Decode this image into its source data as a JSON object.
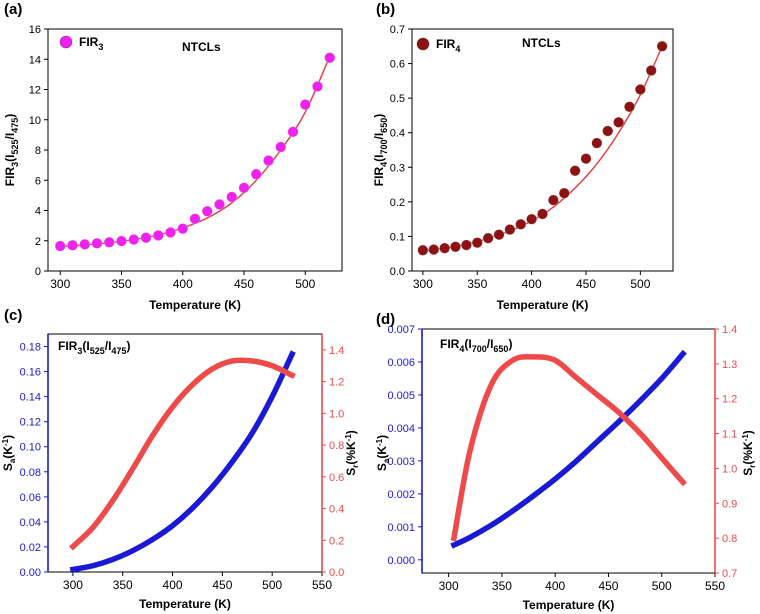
{
  "chart_data": [
    {
      "panel": "(a)",
      "type": "scatter",
      "annotation": "NTCLs",
      "xlabel": "Temperature (K)",
      "ylabel": {
        "base": "FIR",
        "sub1": "3",
        "mid": "(I",
        "sub2": "525",
        "slash": "/I",
        "sub3": "475",
        "end": ")"
      },
      "legend": {
        "base": "FIR",
        "sub": "3"
      },
      "legend_position": "top-left",
      "xlim": [
        290,
        530
      ],
      "ylim": [
        0,
        16
      ],
      "xticks": [
        300,
        350,
        400,
        450,
        500
      ],
      "yticks": [
        0,
        2,
        4,
        6,
        8,
        10,
        12,
        14,
        16
      ],
      "marker_color": "#ee22ee",
      "fit_color": "#e8383b",
      "x": [
        300,
        310,
        320,
        330,
        340,
        350,
        360,
        370,
        380,
        390,
        400,
        410,
        420,
        430,
        440,
        450,
        460,
        470,
        480,
        490,
        500,
        510,
        520
      ],
      "y": [
        1.65,
        1.7,
        1.76,
        1.83,
        1.9,
        1.98,
        2.08,
        2.2,
        2.35,
        2.55,
        2.8,
        3.45,
        3.95,
        4.4,
        4.9,
        5.5,
        6.4,
        7.3,
        8.2,
        9.2,
        11.0,
        12.2,
        14.1
      ],
      "fit": [
        [
          300,
          1.62
        ],
        [
          320,
          1.72
        ],
        [
          340,
          1.87
        ],
        [
          360,
          2.08
        ],
        [
          380,
          2.38
        ],
        [
          400,
          2.85
        ],
        [
          420,
          3.5
        ],
        [
          440,
          4.5
        ],
        [
          460,
          6.0
        ],
        [
          480,
          8.0
        ],
        [
          500,
          10.5
        ],
        [
          520,
          14.2
        ]
      ]
    },
    {
      "panel": "(b)",
      "type": "scatter",
      "annotation": "NTCLs",
      "xlabel": "Temperature (K)",
      "ylabel": {
        "base": "FIR",
        "sub1": "4",
        "mid": "(I",
        "sub2": "700",
        "slash": "/I",
        "sub3": "650",
        "end": ")"
      },
      "legend": {
        "base": "FIR",
        "sub": "4"
      },
      "legend_position": "top-left",
      "xlim": [
        290,
        530
      ],
      "ylim": [
        0,
        0.7
      ],
      "xticks": [
        300,
        350,
        400,
        450,
        500
      ],
      "yticks": [
        0.0,
        0.1,
        0.2,
        0.3,
        0.4,
        0.5,
        0.6,
        0.7
      ],
      "marker_color": "#8b1313",
      "fit_color": "#e8383b",
      "x": [
        300,
        310,
        320,
        330,
        340,
        350,
        360,
        370,
        380,
        390,
        400,
        410,
        420,
        430,
        440,
        450,
        460,
        470,
        480,
        490,
        500,
        510,
        520
      ],
      "y": [
        0.06,
        0.062,
        0.066,
        0.07,
        0.075,
        0.082,
        0.095,
        0.105,
        0.12,
        0.135,
        0.15,
        0.165,
        0.205,
        0.225,
        0.29,
        0.325,
        0.37,
        0.405,
        0.43,
        0.475,
        0.525,
        0.58,
        0.65
      ],
      "fit": [
        [
          300,
          0.058
        ],
        [
          320,
          0.066
        ],
        [
          340,
          0.078
        ],
        [
          360,
          0.094
        ],
        [
          380,
          0.116
        ],
        [
          400,
          0.145
        ],
        [
          420,
          0.185
        ],
        [
          440,
          0.24
        ],
        [
          460,
          0.31
        ],
        [
          480,
          0.4
        ],
        [
          500,
          0.51
        ],
        [
          520,
          0.65
        ]
      ]
    },
    {
      "panel": "(c)",
      "type": "line",
      "xlabel": "Temperature (K)",
      "inner_title": {
        "base": "FIR",
        "sub1": "3",
        "mid": "(I",
        "sub2": "525",
        "slash": "/I",
        "sub3": "475",
        "end": ")"
      },
      "ylabel_left": {
        "base": "S",
        "sub": "a",
        "end": "(K",
        "sup": "-1",
        "close": ")"
      },
      "ylabel_right": {
        "base": "S",
        "sub": "r",
        "end": "(%K",
        "sup": "-1",
        "close": ")"
      },
      "xlim": [
        275,
        550
      ],
      "xticks": [
        300,
        350,
        400,
        450,
        500,
        550
      ],
      "ylim_left": [
        0,
        0.19
      ],
      "yticks_left": [
        0.0,
        0.02,
        0.04,
        0.06,
        0.08,
        0.1,
        0.12,
        0.14,
        0.16,
        0.18
      ],
      "ylim_right": [
        0,
        1.5
      ],
      "yticks_right": [
        0.0,
        0.2,
        0.4,
        0.6,
        0.8,
        1.0,
        1.2,
        1.4
      ],
      "left_color": "#1a1ad6",
      "right_color": "#ef4a4a",
      "series": [
        {
          "axis": "left",
          "color": "#1a1ad6",
          "points": [
            [
              300,
              0.002
            ],
            [
              320,
              0.005
            ],
            [
              340,
              0.01
            ],
            [
              360,
              0.017
            ],
            [
              380,
              0.026
            ],
            [
              400,
              0.037
            ],
            [
              420,
              0.051
            ],
            [
              440,
              0.068
            ],
            [
              460,
              0.088
            ],
            [
              480,
              0.111
            ],
            [
              500,
              0.14
            ],
            [
              520,
              0.174
            ]
          ]
        },
        {
          "axis": "right",
          "color": "#ef4a4a",
          "points": [
            [
              300,
              0.16
            ],
            [
              320,
              0.28
            ],
            [
              340,
              0.45
            ],
            [
              360,
              0.65
            ],
            [
              380,
              0.86
            ],
            [
              400,
              1.04
            ],
            [
              420,
              1.18
            ],
            [
              440,
              1.28
            ],
            [
              460,
              1.33
            ],
            [
              480,
              1.33
            ],
            [
              500,
              1.3
            ],
            [
              520,
              1.24
            ]
          ]
        }
      ]
    },
    {
      "panel": "(d)",
      "type": "line",
      "xlabel": "Temperature (K)",
      "inner_title": {
        "base": "FIR",
        "sub1": "4",
        "mid": "(I",
        "sub2": "700",
        "slash": "/I",
        "sub3": "650",
        "end": ")"
      },
      "ylabel_left": {
        "base": "S",
        "sub": "a",
        "end": "(K",
        "sup": "-1",
        "close": ")"
      },
      "ylabel_right": {
        "base": "S",
        "sub": "r",
        "end": "(%K",
        "sup": "-1",
        "close": ")"
      },
      "xlim": [
        275,
        550
      ],
      "xticks": [
        300,
        350,
        400,
        450,
        500,
        550
      ],
      "ylim_left": [
        -0.0004,
        0.007
      ],
      "yticks_left": [
        0.0,
        0.001,
        0.002,
        0.003,
        0.004,
        0.005,
        0.006,
        0.007
      ],
      "ylim_right": [
        0.7,
        1.4
      ],
      "yticks_right": [
        0.7,
        0.8,
        0.9,
        1.0,
        1.1,
        1.2,
        1.3,
        1.4
      ],
      "left_color": "#1a1ad6",
      "right_color": "#ef4a4a",
      "series": [
        {
          "axis": "left",
          "color": "#1a1ad6",
          "points": [
            [
              305,
              0.00045
            ],
            [
              320,
              0.00068
            ],
            [
              340,
              0.00105
            ],
            [
              360,
              0.00148
            ],
            [
              380,
              0.00195
            ],
            [
              400,
              0.00245
            ],
            [
              420,
              0.003
            ],
            [
              440,
              0.0036
            ],
            [
              460,
              0.0042
            ],
            [
              480,
              0.00483
            ],
            [
              500,
              0.0055
            ],
            [
              520,
              0.00625
            ]
          ]
        },
        {
          "axis": "right",
          "color": "#ef4a4a",
          "points": [
            [
              305,
              0.8
            ],
            [
              320,
              1.05
            ],
            [
              340,
              1.24
            ],
            [
              360,
              1.31
            ],
            [
              380,
              1.32
            ],
            [
              400,
              1.31
            ],
            [
              420,
              1.26
            ],
            [
              440,
              1.21
            ],
            [
              460,
              1.16
            ],
            [
              480,
              1.1
            ],
            [
              500,
              1.03
            ],
            [
              520,
              0.96
            ]
          ]
        }
      ]
    }
  ]
}
